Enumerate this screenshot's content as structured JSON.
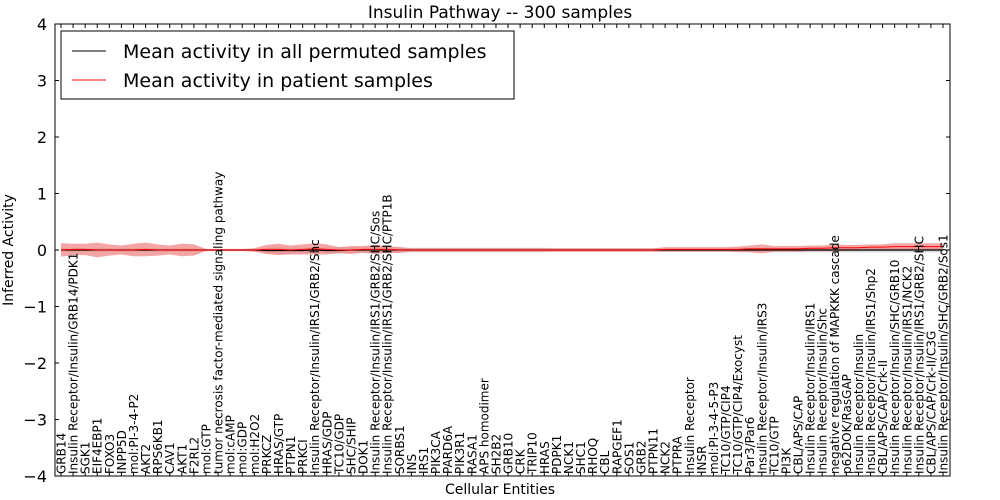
{
  "chart_data": {
    "type": "line",
    "title": "Insulin Pathway -- 300 samples",
    "xlabel": "Cellular Entities",
    "ylabel": "Inferred Activity",
    "ylim": [
      -4,
      4
    ],
    "yticks": [
      "−4",
      "−3",
      "−2",
      "−1",
      "0",
      "1",
      "2",
      "3",
      "4"
    ],
    "legend": {
      "position": "top-left",
      "entries": [
        {
          "label": "Mean activity in all permuted samples",
          "color": "#000000"
        },
        {
          "label": "Mean activity in patient samples",
          "color": "#ff0000"
        }
      ]
    },
    "colors": {
      "permuted": "#000000",
      "patient": "#ff0000",
      "permuted_band": "#c8c8c8",
      "patient_band": "#f08080"
    },
    "categories": [
      "GRB14",
      "Insulin Receptor/Insulin/GRB14/PDK1",
      "SGK1",
      "EIF4EBP1",
      "FOXO3",
      "INPP5D",
      "mol:PI-3-4-P2",
      "AKT2",
      "RPS6KB1",
      "CAV1",
      "AKT1",
      "F2RL2",
      "mol:GTP",
      "tumor necrosis factor-mediated signaling pathway",
      "mol:cAMP",
      "mol:GDP",
      "mol:H2O2",
      "PRKCZ",
      "HRAS/GTP",
      "PTPN1",
      "PRKCI",
      "Insulin Receptor/Insulin/IRS1/GRB2/Shc",
      "HRAS/GDP",
      "TC10/GDP",
      "SHC/SHIP",
      "DOK1",
      "Insulin Receptor/Insulin/IRS1/GRB2/SHC/Sos",
      "Insulin Receptor/Insulin/IRS1/GRB2/SHC/PTP1B",
      "SORBS1",
      "INS",
      "IRS1",
      "PIK3CA",
      "PARD6A",
      "PIK3R1",
      "RASA1",
      "APS homodimer",
      "SH2B2",
      "GRB10",
      "CRK",
      "TRIP10",
      "HRAS",
      "PDPK1",
      "NCK1",
      "SHC1",
      "RHOQ",
      "CBL",
      "RAPGEF1",
      "SOS1",
      "GRB2",
      "PTPN11",
      "NCK2",
      "PTPRA",
      "Insulin Receptor",
      "INSR",
      "mol:PI-3-4-5-P3",
      "TC10/GTP/CIP4",
      "TC10/GTP/CIP4/Exocyst",
      "Par3/Par6",
      "Insulin Receptor/Insulin/IRS3",
      "TC10/GTP",
      "PI3K",
      "CBL/APS/CAP",
      "Insulin Receptor/Insulin/IRS1",
      "Insulin Receptor/Insulin/Shc",
      "negative regulation of MAPKKK cascade",
      "p62DOK/RasGAP",
      "Insulin Receptor/Insulin",
      "Insulin Receptor/Insulin/IRS1/Shp2",
      "CBL/APS/CAP/Crk-II",
      "Insulin Receptor/Insulin/SHC/GRB10",
      "Insulin Receptor/Insulin/IRS1/NCK2",
      "Insulin Receptor/Insulin/IRS1/GRB2/SHC",
      "CBL/APS/CAP/Crk-II/C3G",
      "Insulin Receptor/Insulin/SHC/GRB2/Sos1"
    ],
    "series": [
      {
        "name": "Mean activity in all permuted samples",
        "values": [
          0,
          0,
          0,
          0,
          0,
          0,
          0,
          0,
          0,
          0,
          0,
          0,
          0,
          0,
          0,
          0,
          0,
          -0.01,
          -0.01,
          -0.01,
          -0.01,
          0,
          -0.01,
          -0.01,
          0,
          0,
          0,
          0,
          0,
          0,
          0,
          0,
          0,
          0,
          0,
          0,
          0,
          0,
          0,
          0,
          0,
          0,
          0,
          0,
          0,
          0,
          0,
          0,
          0,
          0,
          0,
          0,
          0,
          0,
          0,
          0,
          0,
          0,
          0,
          0,
          0,
          0,
          0,
          0,
          0,
          0,
          0,
          0,
          0,
          0,
          0,
          0,
          0,
          0
        ],
        "band": [
          0.03,
          0.03,
          0.03,
          0.03,
          0.03,
          0.03,
          0.03,
          0.03,
          0.03,
          0.03,
          0.03,
          0.03,
          0.01,
          0.01,
          0.01,
          0.01,
          0.02,
          0.05,
          0.06,
          0.05,
          0.05,
          0.04,
          0.05,
          0.06,
          0.05,
          0.05,
          0.05,
          0.06,
          0.05,
          0.04,
          0.04,
          0.04,
          0.04,
          0.04,
          0.04,
          0.04,
          0.04,
          0.04,
          0.04,
          0.04,
          0.04,
          0.03,
          0.03,
          0.03,
          0.03,
          0.03,
          0.03,
          0.03,
          0.03,
          0.03,
          0.03,
          0.03,
          0.03,
          0.03,
          0.03,
          0.03,
          0.03,
          0.04,
          0.04,
          0.04,
          0.04,
          0.04,
          0.04,
          0.04,
          0.04,
          0.04,
          0.04,
          0.04,
          0.04,
          0.04,
          0.04,
          0.04,
          0.04,
          0.04
        ]
      },
      {
        "name": "Mean activity in patient samples",
        "values": [
          0,
          0.01,
          0.01,
          0,
          0,
          0,
          0,
          0.01,
          0,
          0,
          0,
          0,
          0,
          0,
          0,
          0,
          0,
          0.01,
          0.01,
          0,
          0.01,
          0.02,
          0.01,
          0,
          0,
          0.01,
          0.01,
          0.01,
          0,
          0,
          0,
          0,
          0,
          0,
          0,
          0,
          0,
          0,
          0,
          0,
          0,
          0,
          0,
          0,
          0,
          0,
          0,
          0,
          0,
          0,
          0.01,
          0.01,
          0.01,
          0.01,
          0.01,
          0.01,
          0.01,
          0.02,
          0.02,
          0.02,
          0.02,
          0.02,
          0.03,
          0.03,
          0.04,
          0.04,
          0.04,
          0.05,
          0.05,
          0.06,
          0.06,
          0.06,
          0.06,
          0.06
        ],
        "band": [
          0.12,
          0.1,
          0.1,
          0.13,
          0.1,
          0.08,
          0.11,
          0.12,
          0.1,
          0.08,
          0.11,
          0.1,
          0.02,
          0.02,
          0.02,
          0.02,
          0.03,
          0.08,
          0.1,
          0.08,
          0.09,
          0.1,
          0.09,
          0.05,
          0.07,
          0.06,
          0.08,
          0.06,
          0.05,
          0.03,
          0.03,
          0.03,
          0.03,
          0.03,
          0.03,
          0.03,
          0.03,
          0.03,
          0.03,
          0.03,
          0.03,
          0.03,
          0.03,
          0.03,
          0.03,
          0.03,
          0.03,
          0.03,
          0.03,
          0.03,
          0.04,
          0.04,
          0.04,
          0.04,
          0.04,
          0.04,
          0.05,
          0.06,
          0.08,
          0.05,
          0.05,
          0.05,
          0.05,
          0.05,
          0.06,
          0.05,
          0.05,
          0.05,
          0.05,
          0.06,
          0.06,
          0.06,
          0.06,
          0.06
        ]
      }
    ]
  }
}
